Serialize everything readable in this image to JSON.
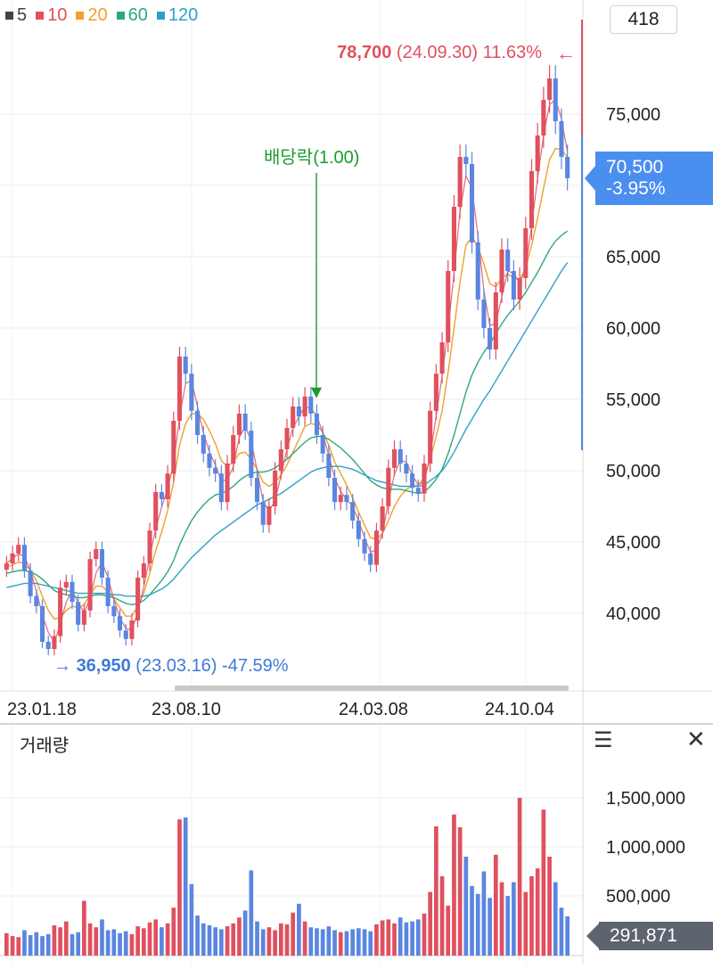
{
  "legend": [
    {
      "label": "5",
      "color": "#444444"
    },
    {
      "label": "10",
      "color": "#e0505e"
    },
    {
      "label": "20",
      "color": "#f0a030"
    },
    {
      "label": "60",
      "color": "#2ea87a"
    },
    {
      "label": "120",
      "color": "#2ea0c8"
    }
  ],
  "toolbar": {
    "count_value": "418"
  },
  "annotations": {
    "high": {
      "price": "78,700",
      "date": "(24.09.30)",
      "pct": "11.63%",
      "arrow": "←",
      "color": "#e0505e"
    },
    "low": {
      "arrow": "→",
      "price": "36,950",
      "date": "(23.03.16)",
      "pct": "-47.59%",
      "color": "#3e7ad8"
    },
    "dividend": {
      "label": "배당락(1.00)",
      "color": "#1a9c2e"
    }
  },
  "current": {
    "price": "70,500",
    "change": "-3.95%",
    "color": "#4a8ef0"
  },
  "volume_panel": {
    "title": "거래량",
    "menu_icon": "menu-icon",
    "close_icon": "close-icon",
    "current_value": "291,871"
  },
  "chart_data": [
    {
      "type": "candlestick",
      "x_tick_labels": [
        "23.01.18",
        "23.08.10",
        "24.03.08",
        "24.10.04"
      ],
      "y_tick_labels": [
        "40,000",
        "45,000",
        "50,000",
        "55,000",
        "60,000",
        "65,000",
        "70,000",
        "75,000"
      ],
      "ylim": [
        36000,
        82000
      ],
      "grid": true,
      "series": [
        {
          "name": "price",
          "close": [
            43500,
            44200,
            44800,
            43000,
            41200,
            40500,
            38000,
            37500,
            38400,
            41800,
            42200,
            40800,
            39200,
            40200,
            43800,
            44500,
            42500,
            40500,
            39800,
            38800,
            38200,
            39500,
            42500,
            43500,
            45800,
            48500,
            48000,
            49800,
            53500,
            58000,
            56800,
            54200,
            52500,
            51200,
            50200,
            49800,
            47800,
            50500,
            52500,
            54000,
            52800,
            49500,
            47800,
            46200,
            47500,
            50000,
            51500,
            53000,
            54500,
            53800,
            55200,
            54000,
            52500,
            51200,
            49500,
            47800,
            48300,
            47800,
            46500,
            45200,
            44200,
            43400,
            45800,
            47500,
            50200,
            51500,
            50500,
            49800,
            48800,
            48400,
            50500,
            54200,
            56800,
            59000,
            64000,
            68500,
            72000,
            71500,
            66000,
            62000,
            60000,
            58500,
            62500,
            65500,
            64000,
            62000,
            63500,
            67000,
            71000,
            73500,
            76000,
            77500,
            74500,
            72000,
            70500
          ]
        },
        {
          "name": "ma20",
          "values": [
            43200,
            43400,
            43600,
            43500,
            43000,
            42300,
            41200,
            40200,
            39600,
            39700,
            40200,
            40500,
            40400,
            40600,
            41300,
            41900,
            41900,
            41500,
            41000,
            40400,
            39800,
            39800,
            40500,
            41400,
            42800,
            44400,
            45700,
            47200,
            49200,
            51800,
            53300,
            54000,
            54000,
            53600,
            52800,
            51900,
            50700,
            50300,
            50600,
            51200,
            51300,
            50800,
            50100,
            49200,
            48900,
            49200,
            49700,
            50400,
            51300,
            52200,
            53100,
            53300,
            53200,
            52700,
            51800,
            50600,
            49800,
            49000,
            48100,
            47100,
            46200,
            45300,
            45200,
            45600,
            46500,
            47500,
            48200,
            48700,
            48900,
            49000,
            49500,
            50800,
            52400,
            54200,
            56900,
            60000,
            63200,
            65800,
            66400,
            65700,
            64500,
            63100,
            62900,
            63500,
            63800,
            63500,
            63400,
            64200,
            65800,
            67700,
            69800,
            71800,
            72600,
            72500,
            72000
          ]
        },
        {
          "name": "ma60",
          "values": [
            42800,
            42900,
            43000,
            43000,
            42900,
            42700,
            42400,
            42000,
            41600,
            41400,
            41300,
            41200,
            41100,
            41100,
            41200,
            41300,
            41300,
            41200,
            41100,
            40900,
            40700,
            40600,
            40700,
            40900,
            41300,
            41800,
            42300,
            42900,
            43700,
            44800,
            45700,
            46500,
            47100,
            47600,
            48000,
            48300,
            48400,
            48600,
            48900,
            49300,
            49600,
            49800,
            49900,
            49900,
            50000,
            50200,
            50500,
            50800,
            51200,
            51600,
            52000,
            52300,
            52400,
            52400,
            52200,
            51900,
            51600,
            51200,
            50800,
            50300,
            49800,
            49300,
            49000,
            48800,
            48700,
            48700,
            48700,
            48600,
            48500,
            48400,
            48500,
            48900,
            49400,
            50100,
            51200,
            52500,
            54000,
            55500,
            56700,
            57600,
            58300,
            58900,
            59600,
            60300,
            60900,
            61400,
            61900,
            62500,
            63200,
            63900,
            64700,
            65500,
            66100,
            66500,
            66800
          ]
        },
        {
          "name": "ma120",
          "values": [
            41800,
            41900,
            42000,
            42100,
            42100,
            42100,
            42000,
            41900,
            41800,
            41700,
            41600,
            41500,
            41400,
            41400,
            41400,
            41400,
            41400,
            41400,
            41300,
            41300,
            41200,
            41200,
            41200,
            41200,
            41300,
            41500,
            41700,
            42000,
            42400,
            42900,
            43400,
            43900,
            44300,
            44700,
            45100,
            45500,
            45800,
            46100,
            46400,
            46700,
            47000,
            47300,
            47600,
            47800,
            48000,
            48200,
            48400,
            48700,
            49000,
            49300,
            49600,
            49900,
            50100,
            50200,
            50300,
            50300,
            50300,
            50200,
            50100,
            49900,
            49700,
            49500,
            49300,
            49200,
            49100,
            49000,
            48900,
            48900,
            48900,
            48900,
            49000,
            49300,
            49600,
            50000,
            50600,
            51300,
            52100,
            52900,
            53600,
            54300,
            55000,
            55600,
            56300,
            57000,
            57700,
            58400,
            59100,
            59800,
            60500,
            61200,
            61900,
            62600,
            63300,
            64000,
            64600
          ]
        }
      ]
    },
    {
      "type": "bar",
      "name": "volume",
      "y_tick_labels": [
        "500,000",
        "1,000,000",
        "1,500,000"
      ],
      "ylim": [
        0,
        2000000
      ],
      "values": [
        120000,
        90000,
        80000,
        150000,
        100000,
        130000,
        90000,
        110000,
        200000,
        180000,
        240000,
        110000,
        130000,
        450000,
        220000,
        180000,
        260000,
        150000,
        160000,
        120000,
        140000,
        110000,
        190000,
        170000,
        230000,
        260000,
        180000,
        220000,
        380000,
        1280000,
        1300000,
        620000,
        300000,
        220000,
        200000,
        180000,
        160000,
        190000,
        220000,
        280000,
        350000,
        760000,
        240000,
        160000,
        180000,
        150000,
        220000,
        210000,
        330000,
        420000,
        240000,
        180000,
        170000,
        160000,
        190000,
        150000,
        130000,
        140000,
        160000,
        170000,
        160000,
        140000,
        210000,
        250000,
        260000,
        220000,
        280000,
        230000,
        240000,
        260000,
        320000,
        540000,
        1210000,
        700000,
        400000,
        1330000,
        1200000,
        900000,
        600000,
        520000,
        750000,
        480000,
        920000,
        640000,
        500000,
        640000,
        1500000,
        540000,
        700000,
        780000,
        1380000,
        900000,
        640000,
        380000,
        291871
      ]
    }
  ]
}
